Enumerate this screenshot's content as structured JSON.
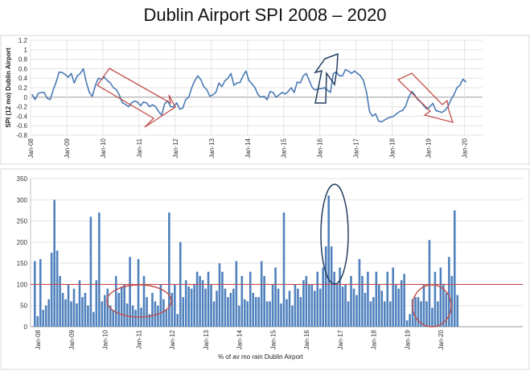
{
  "title": "Dublin Airport SPI 2008 – 2020",
  "chart_data": [
    {
      "type": "line",
      "ylabel": "SPI (12 mo) Dublin Airport",
      "xlabel": "",
      "ylim": [
        -0.8,
        1.2
      ],
      "yticks": [
        -0.8,
        -0.6,
        -0.4,
        -0.2,
        0,
        0.2,
        0.4,
        0.6,
        0.8,
        1,
        1.2
      ],
      "xticks": [
        "Jan-08",
        "Jan-09",
        "Jan-10",
        "Jan-11",
        "Jan-12",
        "Jan-13",
        "Jan-14",
        "Jan-15",
        "Jan-16",
        "Jan-17",
        "Jan-18",
        "Jan-19",
        "Jan-20"
      ],
      "x_start": "Jan-08",
      "grid": "horizontal",
      "series_color": "#4a7ab5",
      "annotation_color_red": "#c0504d",
      "annotation_color_blue": "#243f60",
      "values": [
        0.06,
        -0.05,
        0.08,
        0.1,
        0.1,
        -0.02,
        -0.05,
        0.15,
        0.32,
        0.53,
        0.52,
        0.48,
        0.42,
        0.5,
        0.3,
        0.45,
        0.5,
        0.6,
        0.32,
        0.1,
        0.02,
        0.25,
        0.4,
        0.38,
        0.42,
        0.35,
        0.3,
        0.2,
        0.16,
        0.04,
        -0.12,
        -0.15,
        -0.2,
        -0.12,
        -0.08,
        -0.1,
        -0.18,
        -0.1,
        -0.12,
        -0.2,
        -0.16,
        -0.2,
        -0.3,
        -0.38,
        -0.14,
        -0.08,
        -0.2,
        -0.2,
        -0.12,
        -0.25,
        -0.23,
        -0.05,
        0.0,
        0.2,
        0.35,
        0.45,
        0.37,
        0.22,
        0.16,
        0.02,
        0.05,
        0.1,
        0.3,
        0.22,
        0.35,
        0.4,
        0.5,
        0.25,
        0.3,
        0.31,
        0.45,
        0.55,
        0.35,
        0.28,
        0.2,
        0.05,
        0.0,
        0.02,
        -0.05,
        0.12,
        0.1,
        0.0,
        0.05,
        0.1,
        0.07,
        0.12,
        0.2,
        0.1,
        0.32,
        0.3,
        0.45,
        0.5,
        0.35,
        0.2,
        0.15,
        0.18,
        0.18,
        0.2,
        0.15,
        0.1,
        0.5,
        0.53,
        0.45,
        0.45,
        0.58,
        0.55,
        0.5,
        0.55,
        0.5,
        0.45,
        0.35,
        0.1,
        -0.3,
        -0.4,
        -0.35,
        -0.5,
        -0.52,
        -0.48,
        -0.44,
        -0.42,
        -0.4,
        -0.35,
        -0.3,
        -0.28,
        -0.18,
        0.0,
        0.12,
        0.05,
        -0.05,
        -0.1,
        -0.18,
        -0.25,
        -0.2,
        -0.13,
        -0.28,
        -0.3,
        -0.32,
        -0.28,
        -0.2,
        -0.05,
        0.05,
        0.2,
        0.25,
        0.38,
        0.32
      ]
    },
    {
      "type": "bar",
      "xlabel": "% of av mo rain Dublin Airport",
      "ylabel": "",
      "ylim": [
        0,
        350
      ],
      "yticks": [
        0,
        50,
        100,
        150,
        200,
        250,
        300,
        350
      ],
      "xticks": [
        "Jan-08",
        "Jan-09",
        "Jan-10",
        "Jan-11",
        "Jan-12",
        "Jan-13",
        "Jan-14",
        "Jan-15",
        "Jan-16",
        "Jan-17",
        "Jan-18",
        "Jan-19",
        "Jan-20"
      ],
      "x_start": "Jan-08",
      "reference_line": 100,
      "grid": "horizontal",
      "bar_color": "#4f81bd",
      "reference_color": "#c0504d",
      "values": [
        155,
        25,
        160,
        40,
        50,
        65,
        175,
        300,
        180,
        120,
        80,
        65,
        100,
        60,
        90,
        55,
        110,
        70,
        80,
        50,
        260,
        35,
        110,
        270,
        60,
        75,
        90,
        50,
        40,
        120,
        80,
        95,
        100,
        55,
        165,
        50,
        40,
        160,
        45,
        120,
        70,
        30,
        80,
        60,
        50,
        100,
        65,
        40,
        270,
        80,
        100,
        30,
        200,
        70,
        110,
        95,
        90,
        100,
        130,
        120,
        110,
        90,
        130,
        100,
        60,
        85,
        150,
        130,
        90,
        70,
        80,
        90,
        155,
        50,
        120,
        65,
        60,
        130,
        80,
        70,
        70,
        155,
        120,
        60,
        60,
        100,
        140,
        90,
        55,
        270,
        65,
        85,
        50,
        100,
        90,
        70,
        110,
        120,
        100,
        100,
        85,
        130,
        90,
        140,
        190,
        310,
        190,
        130,
        100,
        140,
        95,
        100,
        60,
        120,
        90,
        75,
        160,
        120,
        80,
        130,
        60,
        70,
        130,
        100,
        85,
        60,
        130,
        60,
        140,
        100,
        90,
        110,
        125,
        15,
        30,
        65,
        70,
        70,
        60,
        100,
        60,
        205,
        45,
        130,
        60,
        140,
        100,
        80,
        165,
        120,
        275,
        75
      ]
    }
  ]
}
